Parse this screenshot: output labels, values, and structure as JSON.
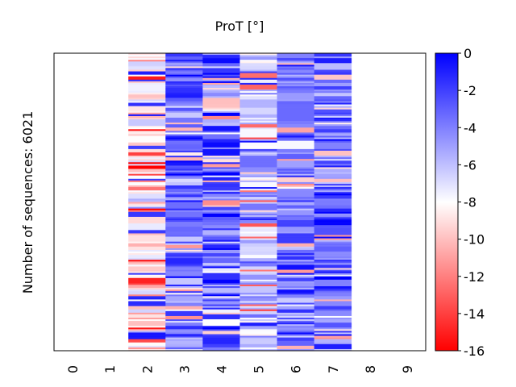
{
  "chart_data": {
    "type": "heatmap",
    "title": "ProT [°]",
    "xlabel": "",
    "ylabel": "Number of sequences: 6021",
    "x_categories": [
      "0",
      "1",
      "2",
      "3",
      "4",
      "5",
      "6",
      "7",
      "8",
      "9"
    ],
    "n_sequences": 6021,
    "columns_with_data": [
      "2",
      "3",
      "4",
      "5",
      "6",
      "7"
    ],
    "empty_columns": [
      "0",
      "1",
      "8",
      "9"
    ],
    "column_summary": [
      {
        "column": "2",
        "typical_value": -8.5,
        "spread": 1.6,
        "description": "mostly near-white to pale pink, occasional blue and red stripes"
      },
      {
        "column": "3",
        "typical_value": -3.5,
        "spread": 1.8,
        "description": "mostly strong blue, some pale and pink stripes"
      },
      {
        "column": "4",
        "typical_value": -3.8,
        "spread": 3.0,
        "description": "strong blue mixed with frequent red/pink stripes"
      },
      {
        "column": "5",
        "typical_value": -6.3,
        "spread": 1.8,
        "description": "pale lavender with pink stripes"
      },
      {
        "column": "6",
        "typical_value": -4.0,
        "spread": 1.6,
        "description": "medium blue, occasional pink stripes"
      },
      {
        "column": "7",
        "typical_value": -3.4,
        "spread": 2.0,
        "description": "blue with white/pale stripes, rare red"
      }
    ],
    "colorbar": {
      "min": -16,
      "max": 0,
      "ticks": [
        0,
        -2,
        -4,
        -6,
        -8,
        -10,
        -12,
        -14,
        -16
      ],
      "tick_labels": [
        "0",
        "-2",
        "-4",
        "-6",
        "-8",
        "-10",
        "-12",
        "-14",
        "-16"
      ],
      "colormap": "bwr (red → white → blue)",
      "color_low": "#ff0000",
      "color_mid": "#ffffff",
      "color_high": "#0000ff",
      "placement": "right"
    },
    "grid": false,
    "x_tick_rotation": "vertical"
  }
}
